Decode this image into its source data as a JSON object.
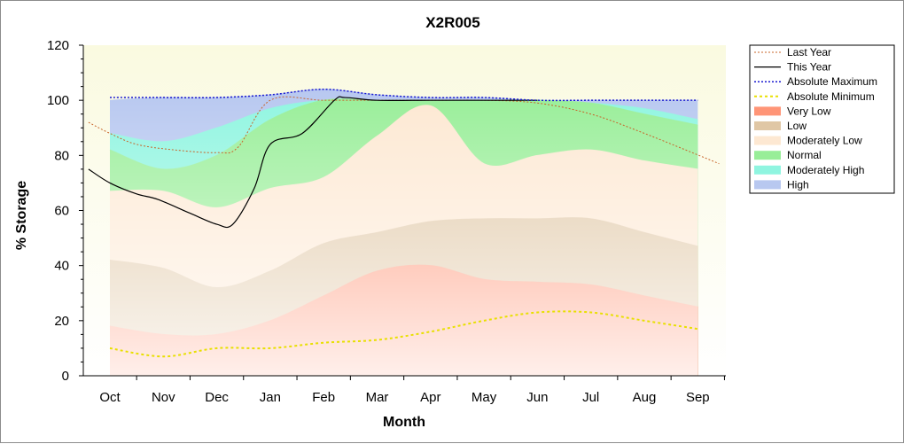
{
  "chart_data": {
    "type": "area",
    "title": "X2R005",
    "xlabel": "Month",
    "ylabel": "% Storage",
    "ylim": [
      0,
      120
    ],
    "yticks": [
      0,
      20,
      40,
      60,
      80,
      100,
      120
    ],
    "categories": [
      "Oct",
      "Nov",
      "Dec",
      "Jan",
      "Feb",
      "Mar",
      "Apr",
      "May",
      "Jun",
      "Jul",
      "Aug",
      "Sep"
    ],
    "legend_position": "right",
    "bands": [
      {
        "name": "High",
        "color": "#b8c8f0",
        "values": [
          100,
          101,
          101,
          102,
          104,
          102,
          101,
          101,
          100,
          100,
          100,
          100
        ]
      },
      {
        "name": "Moderately High",
        "color": "#8ff5e0",
        "values": [
          88,
          85,
          90,
          97,
          100,
          100,
          100,
          100,
          100,
          99,
          97,
          93
        ]
      },
      {
        "name": "Normal",
        "color": "#98ee98",
        "values": [
          82,
          75,
          80,
          93,
          100,
          100,
          100,
          100,
          100,
          99,
          95,
          91
        ]
      },
      {
        "name": "Moderately Low",
        "color": "#fde8d2",
        "values": [
          67,
          67,
          61,
          68,
          72,
          87,
          98,
          77,
          80,
          82,
          78,
          75
        ]
      },
      {
        "name": "Low",
        "color": "#e0c7a5",
        "values": [
          42,
          39,
          32,
          38,
          48,
          52,
          56,
          57,
          57,
          57,
          52,
          47
        ]
      },
      {
        "name": "Very Low",
        "color": "#ff9577",
        "values": [
          18,
          15,
          15,
          20,
          29,
          38,
          40,
          35,
          34,
          33,
          29,
          25
        ]
      }
    ],
    "series": [
      {
        "name": "Last Year",
        "color": "#c8642a",
        "x": [
          -0.4,
          0,
          0.5,
          1.2,
          2.0,
          2.4,
          3,
          4,
          5,
          6,
          7,
          8,
          9,
          10,
          11.4
        ],
        "values": [
          92,
          88,
          84,
          82,
          81,
          83,
          100,
          100,
          100,
          100,
          100,
          99,
          95,
          88,
          77
        ]
      },
      {
        "name": "This Year",
        "color": "#000000",
        "x": [
          -0.4,
          0,
          0.5,
          0.9,
          1.5,
          2.0,
          2.3,
          2.7,
          3.0,
          3.6,
          4.2,
          4.4,
          5,
          6,
          7,
          8
        ],
        "values": [
          75,
          70,
          66,
          64,
          59,
          55,
          55,
          68,
          84,
          88,
          100,
          101,
          100,
          100,
          100,
          100
        ]
      },
      {
        "name": "Absolute Maximum",
        "color": "#1a1ad0",
        "values": [
          101,
          101,
          101,
          102,
          104,
          102,
          101,
          101,
          100,
          100,
          100,
          100
        ]
      },
      {
        "name": "Absolute Minimum",
        "color": "#e8e000",
        "values": [
          10,
          7,
          10,
          10,
          12,
          13,
          16,
          20,
          23,
          23,
          20,
          17
        ]
      }
    ],
    "legend": [
      "Last Year",
      "This Year",
      "Absolute Maximum",
      "Absolute Minimum",
      "Very Low",
      "Low",
      "Moderately Low",
      "Normal",
      "Moderately High",
      "High"
    ]
  }
}
